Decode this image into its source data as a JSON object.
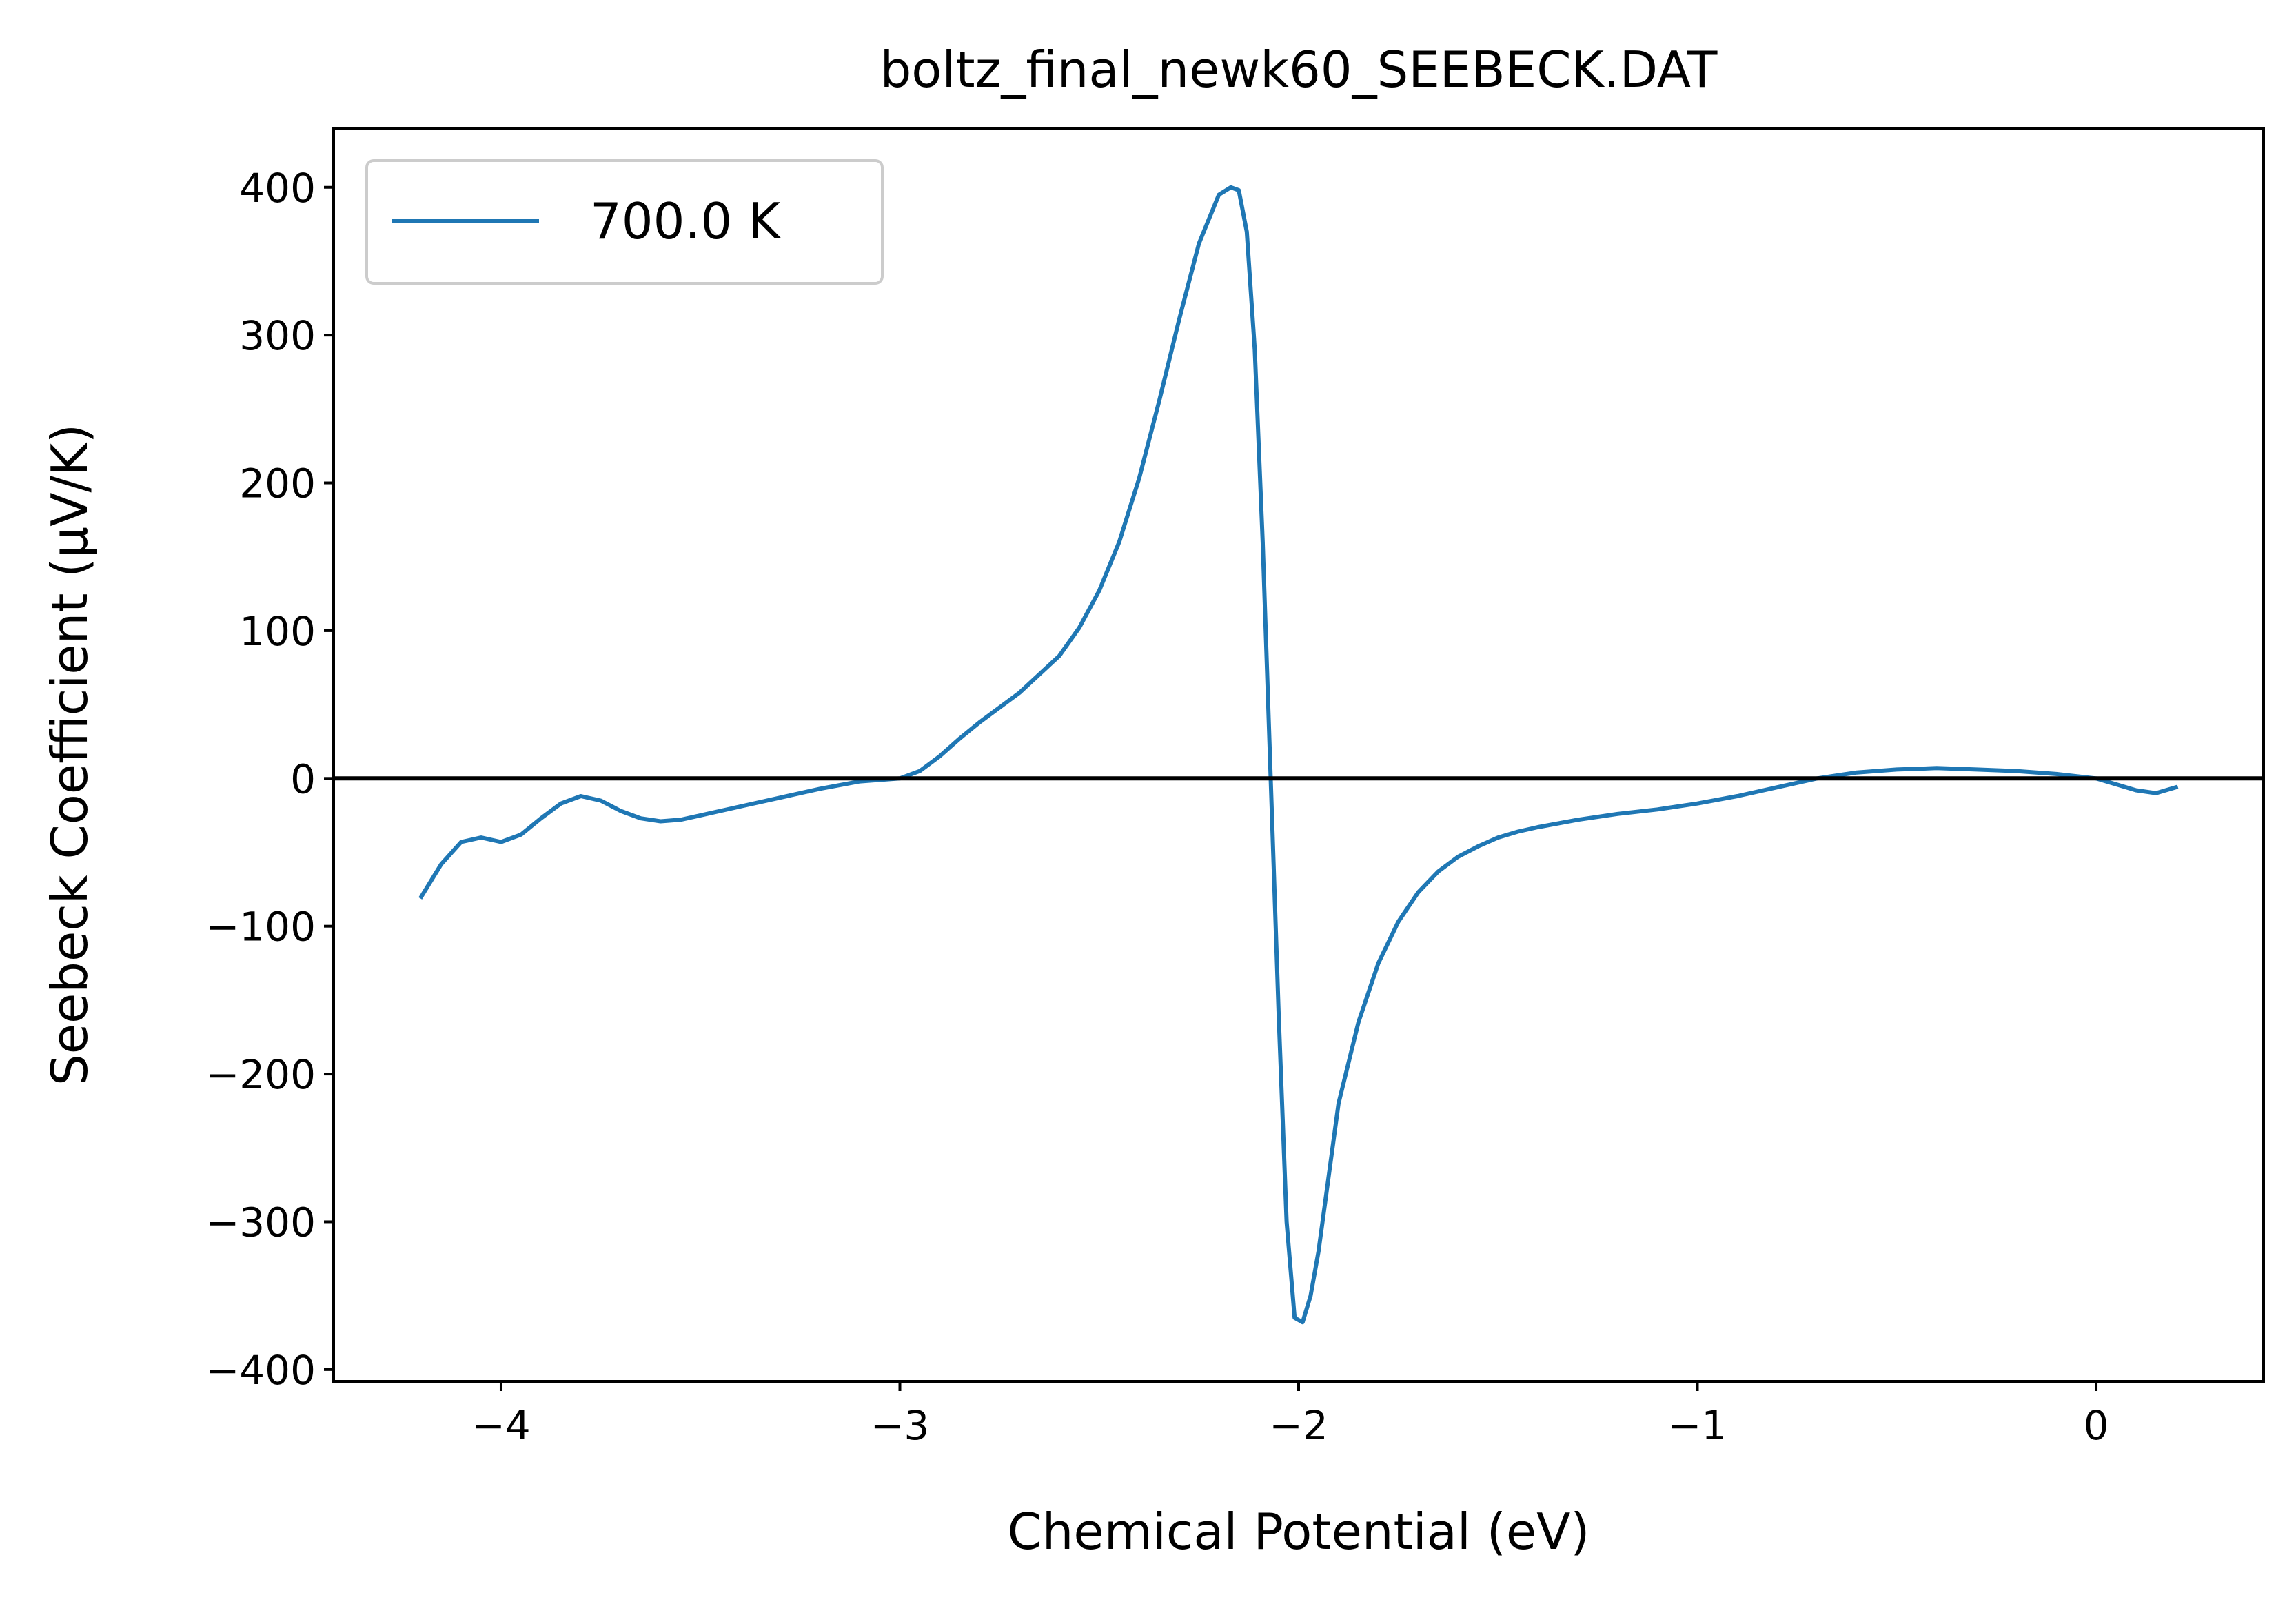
{
  "chart_data": {
    "type": "line",
    "title": "boltz_final_newk60_SEEBECK.DAT",
    "xlabel": "Chemical Potential (eV)",
    "ylabel": "Seebeck Coefficient (μV/K)",
    "xlim": [
      -4.42,
      0.42
    ],
    "ylim": [
      -408,
      440
    ],
    "xticks": [
      -4,
      -3,
      -2,
      -1,
      0
    ],
    "xtick_labels": [
      "−4",
      "−3",
      "−2",
      "−1",
      "0"
    ],
    "yticks": [
      -400,
      -300,
      -200,
      -100,
      0,
      100,
      200,
      300,
      400
    ],
    "ytick_labels": [
      "−400",
      "−300",
      "−200",
      "−100",
      "0",
      "100",
      "200",
      "300",
      "400"
    ],
    "grid": false,
    "legend_position": "top-left",
    "reference_line": {
      "y": 0,
      "color": "#000000"
    },
    "series": [
      {
        "name": "700.0 K",
        "color": "#1f77b4",
        "x": [
          -4.2,
          -4.15,
          -4.1,
          -4.05,
          -4.0,
          -3.95,
          -3.9,
          -3.85,
          -3.8,
          -3.75,
          -3.7,
          -3.65,
          -3.6,
          -3.55,
          -3.5,
          -3.4,
          -3.3,
          -3.2,
          -3.1,
          -3.0,
          -2.95,
          -2.9,
          -2.85,
          -2.8,
          -2.7,
          -2.6,
          -2.55,
          -2.5,
          -2.45,
          -2.4,
          -2.35,
          -2.3,
          -2.25,
          -2.2,
          -2.17,
          -2.15,
          -2.13,
          -2.11,
          -2.09,
          -2.07,
          -2.05,
          -2.03,
          -2.01,
          -1.99,
          -1.97,
          -1.95,
          -1.93,
          -1.9,
          -1.85,
          -1.8,
          -1.75,
          -1.7,
          -1.65,
          -1.6,
          -1.55,
          -1.5,
          -1.45,
          -1.4,
          -1.3,
          -1.2,
          -1.1,
          -1.0,
          -0.9,
          -0.8,
          -0.7,
          -0.6,
          -0.5,
          -0.4,
          -0.3,
          -0.2,
          -0.1,
          0.0,
          0.05,
          0.1,
          0.15,
          0.2
        ],
        "y": [
          -80,
          -58,
          -43,
          -40,
          -43,
          -38,
          -27,
          -17,
          -12,
          -15,
          -22,
          -27,
          -29,
          -28,
          -25,
          -19,
          -13,
          -7,
          -2,
          0,
          5,
          15,
          27,
          38,
          58,
          83,
          102,
          127,
          160,
          203,
          255,
          310,
          362,
          395,
          400,
          398,
          370,
          290,
          160,
          0,
          -160,
          -300,
          -365,
          -368,
          -350,
          -320,
          -280,
          -220,
          -165,
          -125,
          -97,
          -77,
          -63,
          -53,
          -46,
          -40,
          -36,
          -33,
          -28,
          -24,
          -21,
          -17,
          -12,
          -6,
          0,
          4,
          6,
          7,
          6,
          5,
          3,
          0,
          -4,
          -8,
          -10,
          -6
        ]
      }
    ]
  }
}
